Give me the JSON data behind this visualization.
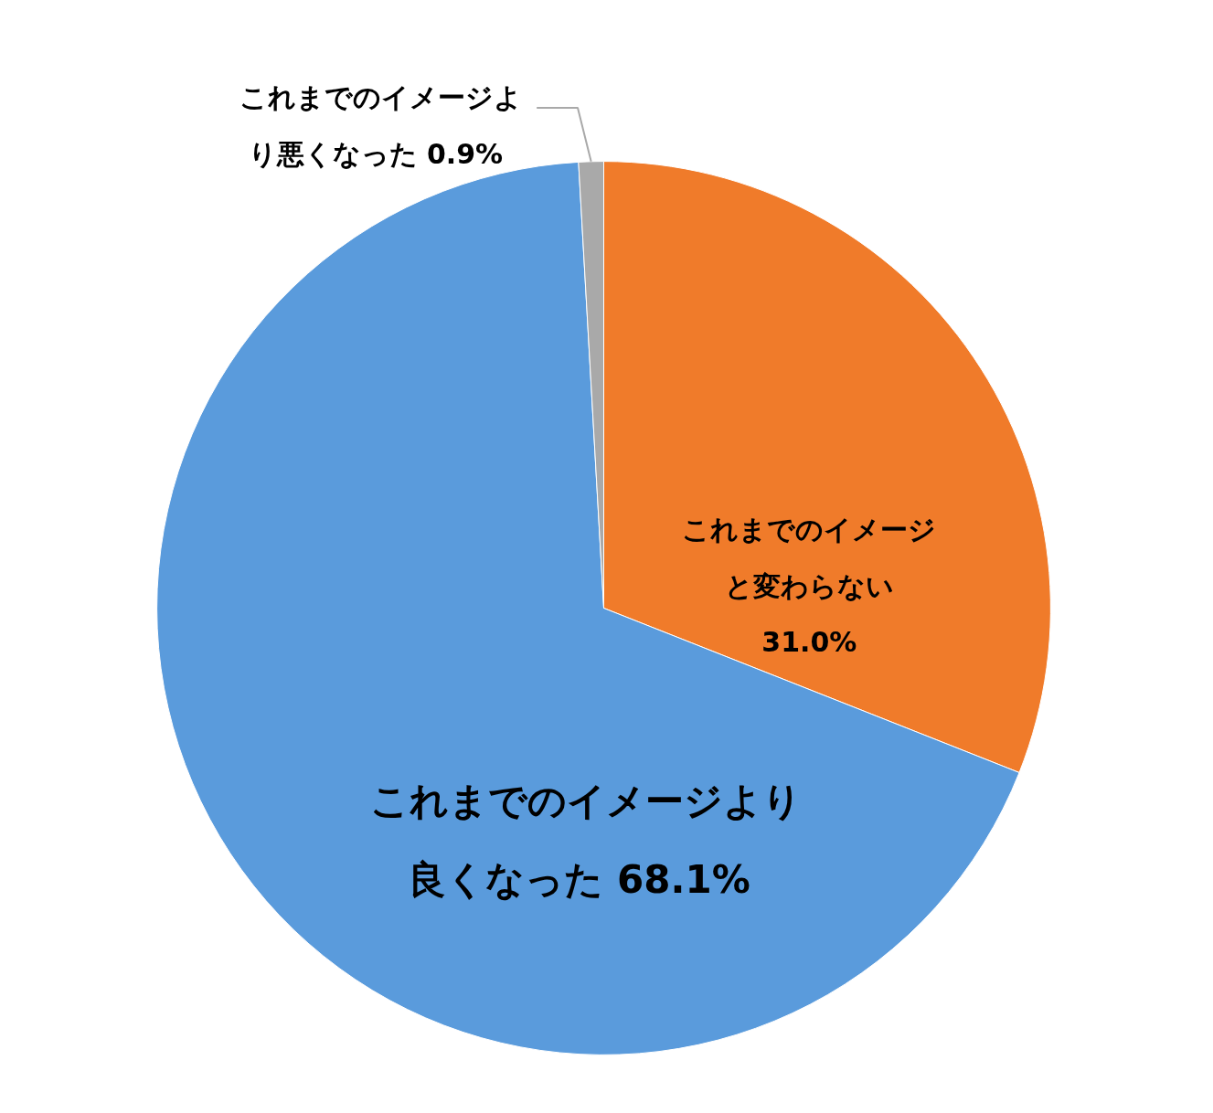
{
  "chart_data": {
    "type": "pie",
    "categories": [
      "これまでのイメージと変わらない",
      "これまでのイメージより良くなった",
      "これまでのイメージより悪くなった"
    ],
    "values": [
      31.0,
      68.1,
      0.9
    ],
    "colors": [
      "#f07b2a",
      "#5a9bdc",
      "#a9a9a9"
    ],
    "value_labels": [
      "31.0%",
      "68.1%",
      "0.9%"
    ]
  }
}
